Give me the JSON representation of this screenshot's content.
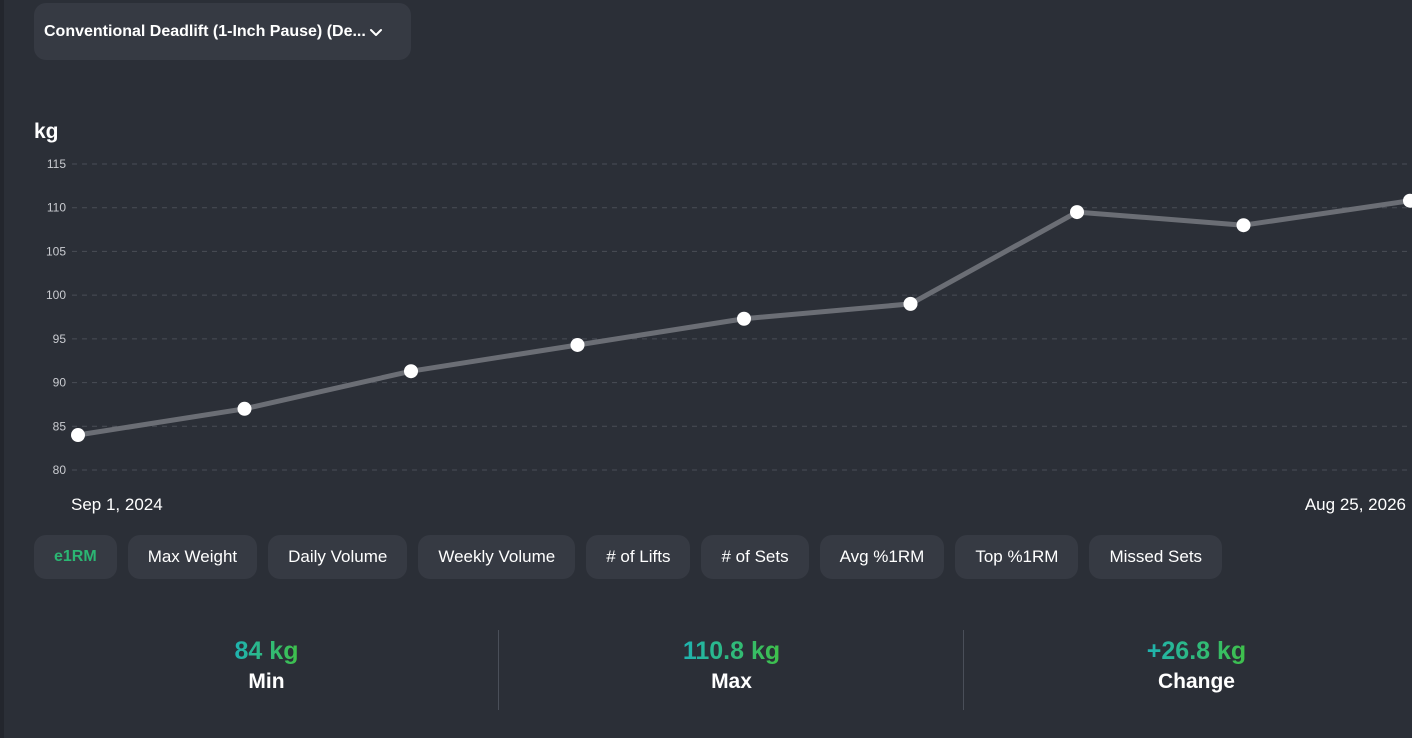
{
  "exercise_select": {
    "label": "Conventional Deadlift (1-Inch Pause) (De...",
    "icon": "chevron-down-icon"
  },
  "unit": "kg",
  "chart_data": {
    "type": "line",
    "yticks": [
      80,
      85,
      90,
      95,
      100,
      105,
      110,
      115
    ],
    "ylim": [
      79,
      116
    ],
    "x_labels": {
      "start": "Sep 1, 2024",
      "end": "Aug 25, 2026"
    },
    "grid": true,
    "series": [
      {
        "values": [
          84,
          87,
          91.3,
          94.3,
          97.3,
          99,
          109.5,
          108,
          110.8
        ]
      }
    ],
    "colors": {
      "line": "#6b6e75",
      "point": "#ffffff",
      "grid": "#4a4e57",
      "tick": "#c9cbd0"
    }
  },
  "metric_tabs": [
    {
      "label": "e1RM",
      "active": true
    },
    {
      "label": "Max Weight",
      "active": false
    },
    {
      "label": "Daily Volume",
      "active": false
    },
    {
      "label": "Weekly Volume",
      "active": false
    },
    {
      "label": "# of Lifts",
      "active": false
    },
    {
      "label": "# of Sets",
      "active": false
    },
    {
      "label": "Avg %1RM",
      "active": false
    },
    {
      "label": "Top %1RM",
      "active": false
    },
    {
      "label": "Missed Sets",
      "active": false
    }
  ],
  "stats": {
    "min": {
      "value": "84 kg",
      "label": "Min"
    },
    "max": {
      "value": "110.8 kg",
      "label": "Max"
    },
    "change": {
      "value": "+26.8 kg",
      "label": "Change"
    }
  },
  "colors": {
    "background": "#2b2f37",
    "card": "#363a43",
    "accent_active": "#2bb673",
    "gradient_start": "#1fb3b0",
    "gradient_end": "#3fc04a"
  }
}
